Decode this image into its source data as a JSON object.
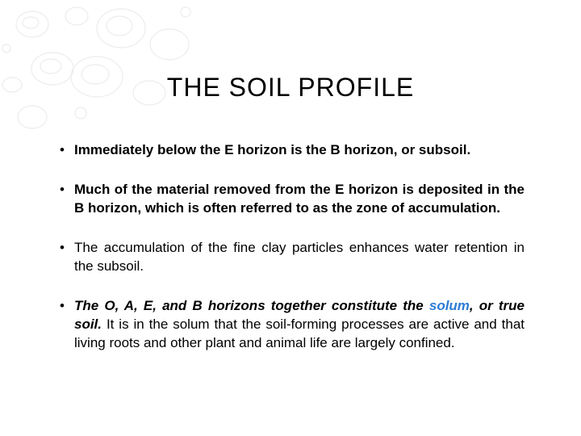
{
  "slide": {
    "title": "THE SOIL PROFILE",
    "title_fontsize": 32,
    "title_color": "#000000",
    "background_color": "#ffffff",
    "body_fontsize": 17,
    "body_color": "#000000",
    "highlight_color": "#2e7cd6",
    "bullets": [
      {
        "bold": true,
        "justify": false,
        "segments": [
          {
            "text": "Immediately below the E horizon is the B horizon, or subsoil.",
            "style": "bold"
          }
        ]
      },
      {
        "bold": true,
        "justify": true,
        "segments": [
          {
            "text": "Much of the material removed from the E horizon is deposited in the B horizon, which is often referred to as the zone of accumulation.",
            "style": "bold"
          }
        ]
      },
      {
        "bold": false,
        "justify": true,
        "segments": [
          {
            "text": "The accumulation of the fine clay particles enhances water retention in the subsoil.",
            "style": "normal"
          }
        ]
      },
      {
        "bold": false,
        "justify": true,
        "segments": [
          {
            "text": "The O, A, E, and B horizons together constitute the ",
            "style": "bold-italic"
          },
          {
            "text": "solum",
            "style": "highlight"
          },
          {
            "text": ", or true soil.",
            "style": "bold-italic"
          },
          {
            "text": " It is in the solum that the soil-forming processes are active and that living roots and other plant and animal life are largely confined.",
            "style": "normal"
          }
        ]
      }
    ]
  },
  "decoration": {
    "type": "water-droplets",
    "opacity": 0.25,
    "stroke_color": "#b8b8b8"
  }
}
